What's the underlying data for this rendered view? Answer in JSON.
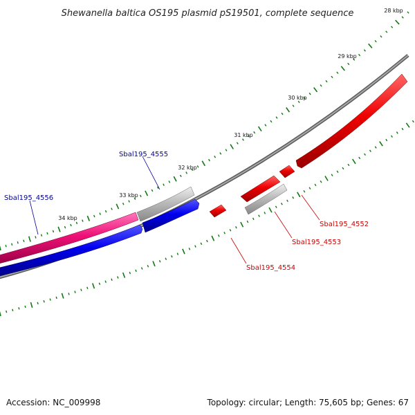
{
  "title": "Shewanella baltica OS195 plasmid pS19501, complete sequence",
  "accession": "Accession: NC_009998",
  "summary": "Topology: circular; Length: 75,605 bp; Genes: 67",
  "ticks": [
    {
      "label": "28 kbp"
    },
    {
      "label": "29 kbp"
    },
    {
      "label": "30 kbp"
    },
    {
      "label": "31 kbp"
    },
    {
      "label": "32 kbp"
    },
    {
      "label": "33 kbp"
    },
    {
      "label": "34 kbp"
    }
  ],
  "genes": [
    {
      "label": "Sbal195_4552",
      "color": "#cc0000"
    },
    {
      "label": "Sbal195_4553",
      "color": "#cc0000"
    },
    {
      "label": "Sbal195_4554",
      "color": "#cc0000"
    },
    {
      "label": "Sbal195_4555",
      "color": "#000099"
    },
    {
      "label": "Sbal195_4556",
      "color": "#000099"
    }
  ],
  "colors": {
    "backbone": "#888888",
    "forward": "#0000ee",
    "reverse": "#ff0000",
    "pink": "#ee1177",
    "gray": "#bbbbbb",
    "tick": "#117711"
  }
}
